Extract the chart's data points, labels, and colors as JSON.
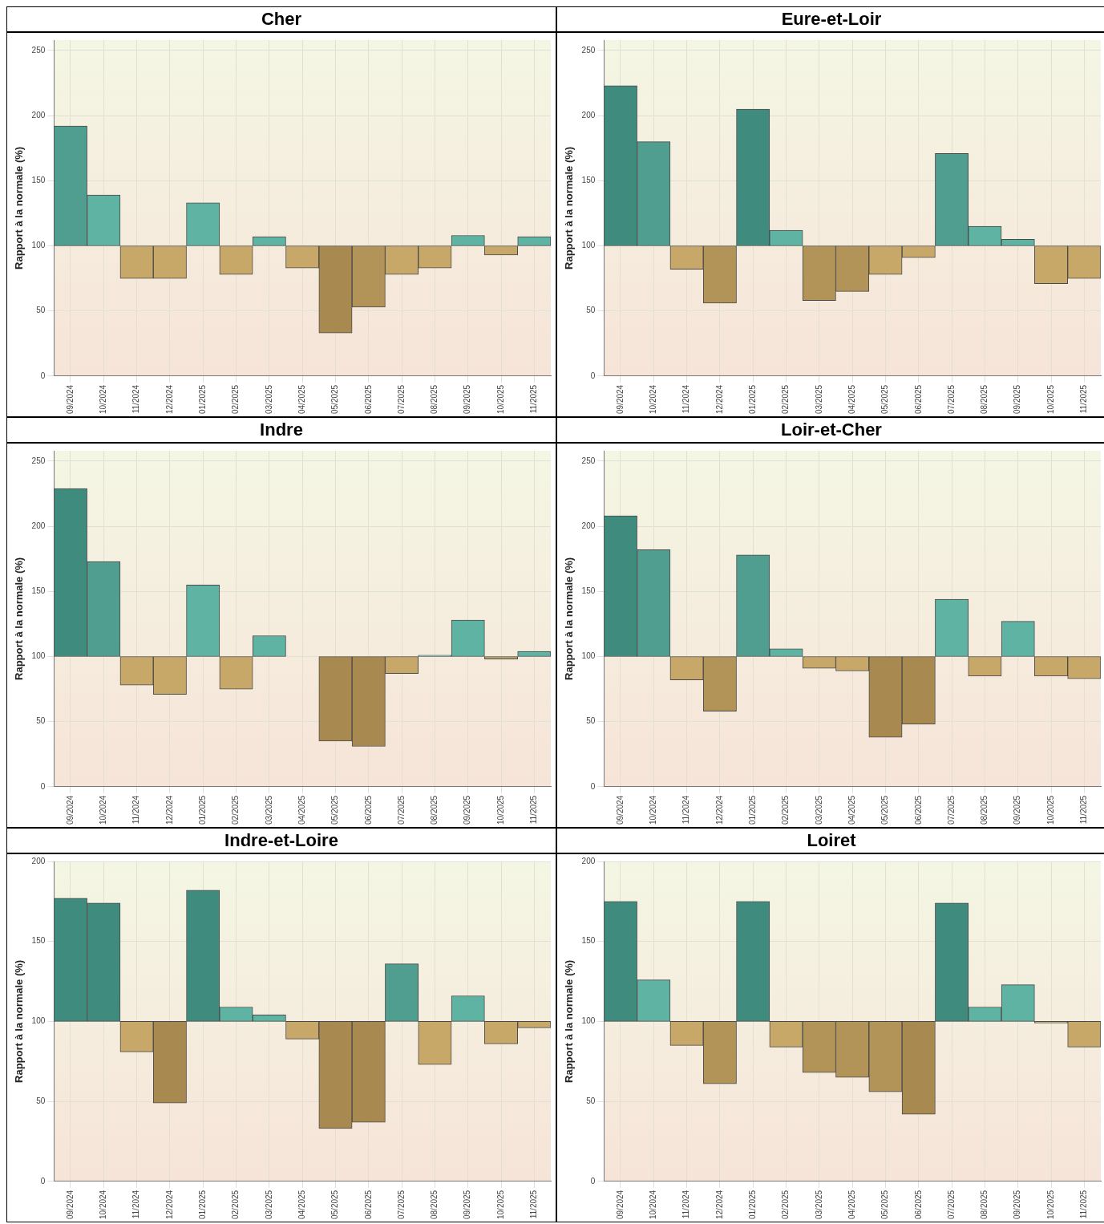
{
  "chart_data": [
    {
      "type": "bar",
      "title": "Cher",
      "ylabel": "Rapport à la normale (%)",
      "categories": [
        "09/2024",
        "10/2024",
        "11/2024",
        "12/2024",
        "01/2025",
        "02/2025",
        "03/2025",
        "04/2025",
        "05/2025",
        "06/2025",
        "07/2025",
        "08/2025",
        "09/2025",
        "10/2025",
        "11/2025"
      ],
      "base": [
        100,
        100,
        100,
        100,
        100,
        100,
        100,
        100,
        100,
        100,
        100,
        100,
        100,
        100,
        100
      ],
      "values": [
        92,
        39,
        -25,
        -25,
        33,
        -22,
        7,
        -17,
        -67,
        -47,
        -22,
        -17,
        8,
        -7,
        7
      ],
      "colors": [
        "#4f9e90",
        "#5fb3a3",
        "#c8a868",
        "#c8a868",
        "#5fb3a3",
        "#c8a868",
        "#5fb3a3",
        "#c8a868",
        "#a88a50",
        "#b39458",
        "#c8a868",
        "#c8a868",
        "#5fb3a3",
        "#c8a868",
        "#5fb3a3"
      ],
      "ylim": [
        0,
        258
      ],
      "yticks": [
        0,
        50,
        100,
        150,
        200,
        250
      ],
      "grid": true,
      "legend": false
    },
    {
      "type": "bar",
      "title": "Eure-et-Loir",
      "ylabel": "Rapport à la normale (%)",
      "categories": [
        "09/2024",
        "10/2024",
        "11/2024",
        "12/2024",
        "01/2025",
        "02/2025",
        "03/2025",
        "04/2025",
        "05/2025",
        "06/2025",
        "07/2025",
        "08/2025",
        "09/2025",
        "10/2025",
        "11/2025"
      ],
      "base": [
        100,
        100,
        100,
        100,
        100,
        100,
        100,
        100,
        100,
        100,
        100,
        100,
        100,
        100,
        100
      ],
      "values": [
        123,
        80,
        -18,
        -44,
        105,
        12,
        -42,
        -35,
        -22,
        -9,
        71,
        15,
        5,
        -29,
        -25
      ],
      "colors": [
        "#3f8c7e",
        "#4f9e90",
        "#c8a868",
        "#b39458",
        "#3f8c7e",
        "#5fb3a3",
        "#b39458",
        "#b39458",
        "#c8a868",
        "#c8a868",
        "#4f9e90",
        "#5fb3a3",
        "#5fb3a3",
        "#c8a868",
        "#c8a868"
      ],
      "ylim": [
        0,
        258
      ],
      "yticks": [
        0,
        50,
        100,
        150,
        200,
        250
      ],
      "grid": true,
      "legend": false
    },
    {
      "type": "bar",
      "title": "Indre",
      "ylabel": "Rapport à la normale (%)",
      "categories": [
        "09/2024",
        "10/2024",
        "11/2024",
        "12/2024",
        "01/2025",
        "02/2025",
        "03/2025",
        "04/2025",
        "05/2025",
        "06/2025",
        "07/2025",
        "08/2025",
        "09/2025",
        "10/2025",
        "11/2025"
      ],
      "base": [
        100,
        100,
        100,
        100,
        100,
        100,
        100,
        100,
        100,
        100,
        100,
        100,
        100,
        100,
        100
      ],
      "values": [
        129,
        73,
        -22,
        -29,
        55,
        -25,
        16,
        0,
        -65,
        -69,
        -13,
        1,
        28,
        -2,
        4
      ],
      "colors": [
        "#3f8c7e",
        "#4f9e90",
        "#c8a868",
        "#c8a868",
        "#5fb3a3",
        "#c8a868",
        "#5fb3a3",
        "#c8a868",
        "#a88a50",
        "#a88a50",
        "#c8a868",
        "#5fb3a3",
        "#5fb3a3",
        "#c8a868",
        "#5fb3a3"
      ],
      "ylim": [
        0,
        258
      ],
      "yticks": [
        0,
        50,
        100,
        150,
        200,
        250
      ],
      "grid": true,
      "legend": false
    },
    {
      "type": "bar",
      "title": "Loir-et-Cher",
      "ylabel": "Rapport à la normale (%)",
      "categories": [
        "09/2024",
        "10/2024",
        "11/2024",
        "12/2024",
        "01/2025",
        "02/2025",
        "03/2025",
        "04/2025",
        "05/2025",
        "06/2025",
        "07/2025",
        "08/2025",
        "09/2025",
        "10/2025",
        "11/2025"
      ],
      "base": [
        100,
        100,
        100,
        100,
        100,
        100,
        100,
        100,
        100,
        100,
        100,
        100,
        100,
        100,
        100
      ],
      "values": [
        108,
        82,
        -18,
        -42,
        78,
        6,
        -9,
        -11,
        -62,
        -52,
        44,
        -15,
        27,
        -15,
        -17
      ],
      "colors": [
        "#3f8c7e",
        "#4f9e90",
        "#c8a868",
        "#b39458",
        "#4f9e90",
        "#5fb3a3",
        "#c8a868",
        "#c8a868",
        "#a88a50",
        "#a88a50",
        "#5fb3a3",
        "#c8a868",
        "#5fb3a3",
        "#c8a868",
        "#c8a868"
      ],
      "ylim": [
        0,
        258
      ],
      "yticks": [
        0,
        50,
        100,
        150,
        200,
        250
      ],
      "grid": true,
      "legend": false
    },
    {
      "type": "bar",
      "title": "Indre-et-Loire",
      "ylabel": "Rapport à la normale (%)",
      "categories": [
        "09/2024",
        "10/2024",
        "11/2024",
        "12/2024",
        "01/2025",
        "02/2025",
        "03/2025",
        "04/2025",
        "05/2025",
        "06/2025",
        "07/2025",
        "08/2025",
        "09/2025",
        "10/2025",
        "11/2025"
      ],
      "base": [
        100,
        100,
        100,
        100,
        100,
        100,
        100,
        100,
        100,
        100,
        100,
        100,
        100,
        100,
        100
      ],
      "values": [
        77,
        74,
        -19,
        -51,
        82,
        9,
        4,
        -11,
        -67,
        -63,
        36,
        -27,
        16,
        -14,
        -4
      ],
      "colors": [
        "#3f8c7e",
        "#3f8c7e",
        "#c8a868",
        "#a88a50",
        "#3f8c7e",
        "#5fb3a3",
        "#5fb3a3",
        "#c8a868",
        "#a88a50",
        "#a88a50",
        "#4f9e90",
        "#c8a868",
        "#5fb3a3",
        "#c8a868",
        "#c8a868"
      ],
      "ylim": [
        0,
        200
      ],
      "yticks": [
        0,
        50,
        100,
        150,
        200
      ],
      "grid": true,
      "legend": false
    },
    {
      "type": "bar",
      "title": "Loiret",
      "ylabel": "Rapport à la normale (%)",
      "categories": [
        "09/2024",
        "10/2024",
        "11/2024",
        "12/2024",
        "01/2025",
        "02/2025",
        "03/2025",
        "04/2025",
        "05/2025",
        "06/2025",
        "07/2025",
        "08/2025",
        "09/2025",
        "10/2025",
        "11/2025"
      ],
      "base": [
        100,
        100,
        100,
        100,
        100,
        100,
        100,
        100,
        100,
        100,
        100,
        100,
        100,
        100,
        100
      ],
      "values": [
        75,
        26,
        -15,
        -39,
        75,
        -16,
        -32,
        -35,
        -44,
        -58,
        74,
        9,
        23,
        -1,
        -16
      ],
      "colors": [
        "#3f8c7e",
        "#5fb3a3",
        "#c8a868",
        "#b39458",
        "#3f8c7e",
        "#c8a868",
        "#b39458",
        "#b39458",
        "#b39458",
        "#a88a50",
        "#3f8c7e",
        "#5fb3a3",
        "#5fb3a3",
        "#c8a868",
        "#c8a868"
      ],
      "ylim": [
        0,
        200
      ],
      "yticks": [
        0,
        50,
        100,
        150,
        200
      ],
      "grid": true,
      "legend": false
    }
  ]
}
